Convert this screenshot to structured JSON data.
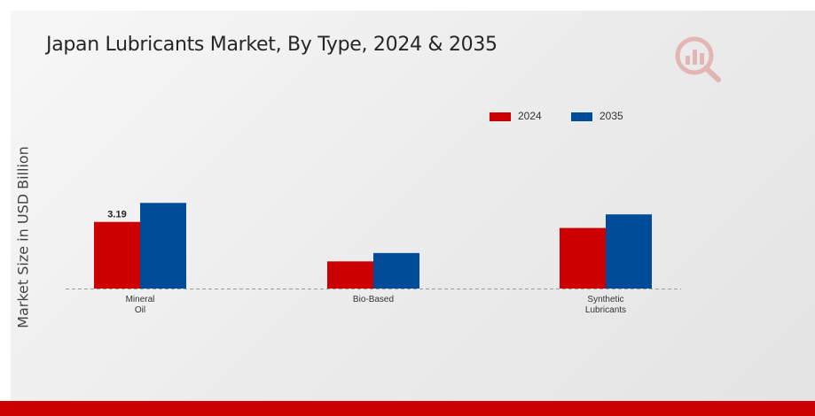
{
  "chart_data": {
    "type": "bar",
    "title": "Japan Lubricants Market, By Type, 2024 & 2035",
    "xlabel": "",
    "ylabel": "Market Size in USD Billion",
    "categories": [
      [
        "Mineral",
        "Oil"
      ],
      [
        "Bio-Based"
      ],
      [
        "Synthetic",
        "Lubricants"
      ]
    ],
    "series": [
      {
        "name": "2024",
        "color": "#cc0000",
        "values": [
          3.19,
          1.3,
          2.9
        ]
      },
      {
        "name": "2035",
        "color": "#004c99",
        "values": [
          4.1,
          1.7,
          3.55
        ]
      }
    ],
    "data_labels": [
      {
        "series": 0,
        "index": 0,
        "text": "3.19"
      }
    ],
    "ylim": [
      0,
      8
    ],
    "grid": false,
    "legend_position": "top-right",
    "baseline_style": "dashed"
  },
  "footer_color": "#cc0000"
}
